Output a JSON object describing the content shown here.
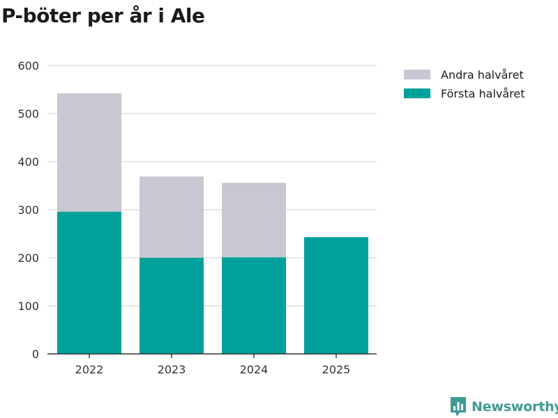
{
  "colors": {
    "first_half": "#00a19a",
    "second_half": "#c8c7d2",
    "grid": "#dddddd",
    "axis": "#333333",
    "brand": "#3e9a93"
  },
  "brand": {
    "name": "Newsworthy",
    "icon": "bar-chart-logo-icon"
  },
  "chart_data": {
    "type": "bar",
    "stacked": true,
    "title": "P-böter per år i Ale",
    "xlabel": "",
    "ylabel": "",
    "categories": [
      "2022",
      "2023",
      "2024",
      "2025"
    ],
    "series": [
      {
        "name": "Första halvåret",
        "values": [
          296,
          200,
          201,
          243
        ]
      },
      {
        "name": "Andra halvåret",
        "values": [
          246,
          169,
          155,
          0
        ]
      }
    ],
    "legend": [
      "Andra halvåret",
      "Första halvåret"
    ],
    "ylim": [
      0,
      600
    ],
    "yticks": [
      0,
      100,
      200,
      300,
      400,
      500,
      600
    ],
    "grid": true,
    "legend_position": "top-right"
  }
}
